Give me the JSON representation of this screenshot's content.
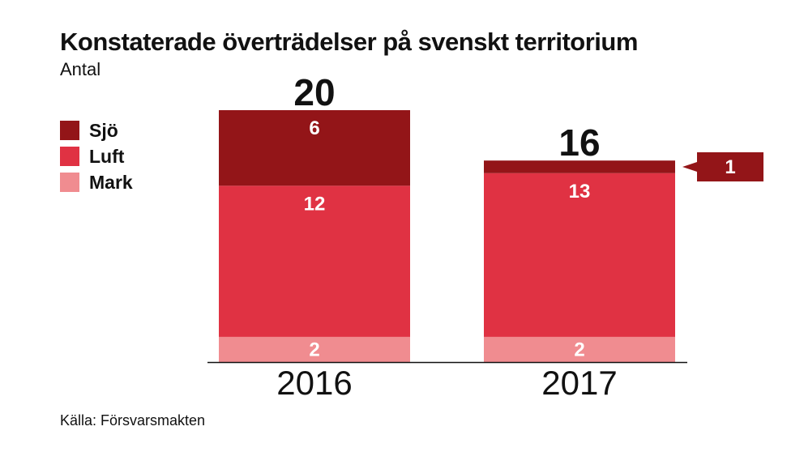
{
  "header": {
    "title": "Konstaterade överträdelser på svenskt territorium",
    "subtitle": "Antal"
  },
  "legend": {
    "items": [
      {
        "label": "Sjö",
        "color": "#931518"
      },
      {
        "label": "Luft",
        "color": "#E03243"
      },
      {
        "label": "Mark",
        "color": "#F08C90"
      }
    ]
  },
  "footer": {
    "source": "Källa: Försvarsmakten"
  },
  "chart_data": {
    "type": "bar",
    "stacked": true,
    "categories": [
      "2016",
      "2017"
    ],
    "series": [
      {
        "name": "Mark",
        "values": [
          2,
          2
        ],
        "color": "#F08C90"
      },
      {
        "name": "Luft",
        "values": [
          12,
          13
        ],
        "color": "#E03243"
      },
      {
        "name": "Sjö",
        "values": [
          6,
          1
        ],
        "color": "#931518"
      }
    ],
    "totals": [
      "20",
      "16"
    ],
    "data_labels": [
      [
        "2",
        "12",
        "6"
      ],
      [
        "2",
        "13",
        "1"
      ]
    ],
    "callout": {
      "category": "2017",
      "series": "Sjö",
      "label": "1",
      "color": "#931518"
    },
    "ylim": [
      0,
      20
    ],
    "grid": false,
    "legend_position": "left"
  }
}
